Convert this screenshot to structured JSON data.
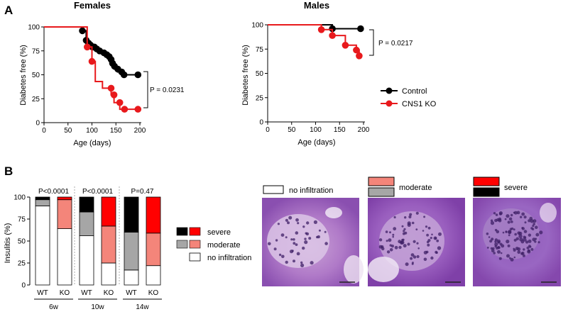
{
  "colors": {
    "control": "#000000",
    "ko": "#e8191c",
    "moderate_wt": "#a6a6a6",
    "moderate_ko": "#f4857a",
    "severe_wt": "#000000",
    "severe_ko": "#ff0000",
    "none": "#ffffff"
  },
  "panel_labels": {
    "a": "A",
    "b": "B"
  },
  "chart_data": [
    {
      "type": "line",
      "title": "Females",
      "xlabel": "Age (days)",
      "ylabel": "Diabetes free (%)",
      "xlim": [
        0,
        200
      ],
      "ylim": [
        0,
        100
      ],
      "xticks": [
        "0",
        "50",
        "100",
        "150",
        "200"
      ],
      "yticks": [
        "0",
        "25",
        "50",
        "75",
        "100"
      ],
      "annotation": "P = 0.0231",
      "series": [
        {
          "name": "Control",
          "color_key": "control",
          "steps": [
            [
              0,
              100
            ],
            [
              80,
              100
            ],
            [
              80,
              96
            ],
            [
              88,
              96
            ],
            [
              88,
              86
            ],
            [
              93,
              86
            ],
            [
              93,
              83
            ],
            [
              97,
              83
            ],
            [
              97,
              81
            ],
            [
              101,
              81
            ],
            [
              101,
              79
            ],
            [
              105,
              79
            ],
            [
              105,
              77
            ],
            [
              110,
              77
            ],
            [
              110,
              75
            ],
            [
              116,
              75
            ],
            [
              116,
              73
            ],
            [
              125,
              73
            ],
            [
              125,
              71
            ],
            [
              131,
              71
            ],
            [
              131,
              69
            ],
            [
              136,
              69
            ],
            [
              136,
              66
            ],
            [
              140,
              66
            ],
            [
              140,
              62
            ],
            [
              143,
              62
            ],
            [
              143,
              59
            ],
            [
              147,
              59
            ],
            [
              147,
              56
            ],
            [
              154,
              56
            ],
            [
              154,
              53
            ],
            [
              162,
              53
            ],
            [
              162,
              50
            ],
            [
              196,
              50
            ]
          ],
          "markers": [
            [
              80,
              96
            ],
            [
              88,
              86
            ],
            [
              93,
              83
            ],
            [
              97,
              81
            ],
            [
              101,
              79
            ],
            [
              105,
              79
            ],
            [
              110,
              77
            ],
            [
              116,
              75
            ],
            [
              125,
              73
            ],
            [
              131,
              71
            ],
            [
              136,
              69
            ],
            [
              140,
              66
            ],
            [
              143,
              62
            ],
            [
              147,
              59
            ],
            [
              154,
              56
            ],
            [
              162,
              53
            ],
            [
              167,
              50
            ],
            [
              196,
              50
            ]
          ]
        },
        {
          "name": "CNS1 KO",
          "color_key": "ko",
          "steps": [
            [
              0,
              100
            ],
            [
              90,
              100
            ],
            [
              90,
              79
            ],
            [
              100,
              79
            ],
            [
              100,
              64
            ],
            [
              107,
              64
            ],
            [
              107,
              43
            ],
            [
              122,
              43
            ],
            [
              122,
              36
            ],
            [
              140,
              36
            ],
            [
              140,
              29
            ],
            [
              146,
              29
            ],
            [
              146,
              21
            ],
            [
              158,
              21
            ],
            [
              158,
              14
            ],
            [
              196,
              14
            ]
          ],
          "markers": [
            [
              90,
              79
            ],
            [
              100,
              64
            ],
            [
              140,
              36
            ],
            [
              146,
              29
            ],
            [
              158,
              21
            ],
            [
              168,
              14
            ],
            [
              196,
              14
            ]
          ]
        }
      ]
    },
    {
      "type": "line",
      "title": "Males",
      "xlabel": "Age (days)",
      "ylabel": "Diabetes free (%)",
      "xlim": [
        0,
        200
      ],
      "ylim": [
        0,
        100
      ],
      "xticks": [
        "0",
        "50",
        "100",
        "150",
        "200"
      ],
      "yticks": [
        "0",
        "25",
        "50",
        "75",
        "100"
      ],
      "annotation": "P = 0.0217",
      "legend": [
        "Control",
        "CNS1 KO"
      ],
      "series": [
        {
          "name": "Control",
          "color_key": "control",
          "steps": [
            [
              0,
              100
            ],
            [
              135,
              100
            ],
            [
              135,
              96
            ],
            [
              194,
              96
            ]
          ],
          "markers": [
            [
              135,
              96
            ],
            [
              194,
              96
            ]
          ]
        },
        {
          "name": "CNS1 KO",
          "color_key": "ko",
          "steps": [
            [
              0,
              100
            ],
            [
              112,
              100
            ],
            [
              112,
              95
            ],
            [
              135,
              95
            ],
            [
              135,
              89
            ],
            [
              162,
              89
            ],
            [
              162,
              79
            ],
            [
              185,
              79
            ],
            [
              185,
              74
            ],
            [
              191,
              74
            ],
            [
              191,
              68
            ],
            [
              194,
              68
            ]
          ],
          "markers": [
            [
              112,
              95
            ],
            [
              135,
              89
            ],
            [
              162,
              79
            ],
            [
              185,
              74
            ],
            [
              191,
              68
            ]
          ]
        }
      ]
    },
    {
      "type": "bar",
      "stacked": true,
      "ylabel": "Insulitis (%)",
      "ylim": [
        0,
        100
      ],
      "yticks": [
        "0",
        "25",
        "50",
        "75",
        "100"
      ],
      "categories": [
        "WT",
        "KO",
        "WT",
        "KO",
        "WT",
        "KO"
      ],
      "groups": [
        {
          "label": "6w",
          "p": "P<0.0001"
        },
        {
          "label": "10w",
          "p": "P<0.0001"
        },
        {
          "label": "14w",
          "p": "P=0.47"
        }
      ],
      "series": [
        {
          "name": "no infiltration",
          "values": [
            90,
            64,
            56,
            25,
            17,
            22
          ]
        },
        {
          "name": "moderate",
          "values": [
            7,
            33,
            27,
            42,
            43,
            37
          ]
        },
        {
          "name": "severe",
          "values": [
            3,
            3,
            17,
            33,
            40,
            41
          ]
        }
      ],
      "legend": [
        "severe",
        "moderate",
        "no infiltration"
      ]
    }
  ],
  "histology": {
    "labels": [
      "no infiltration",
      "moderate",
      "severe"
    ]
  }
}
